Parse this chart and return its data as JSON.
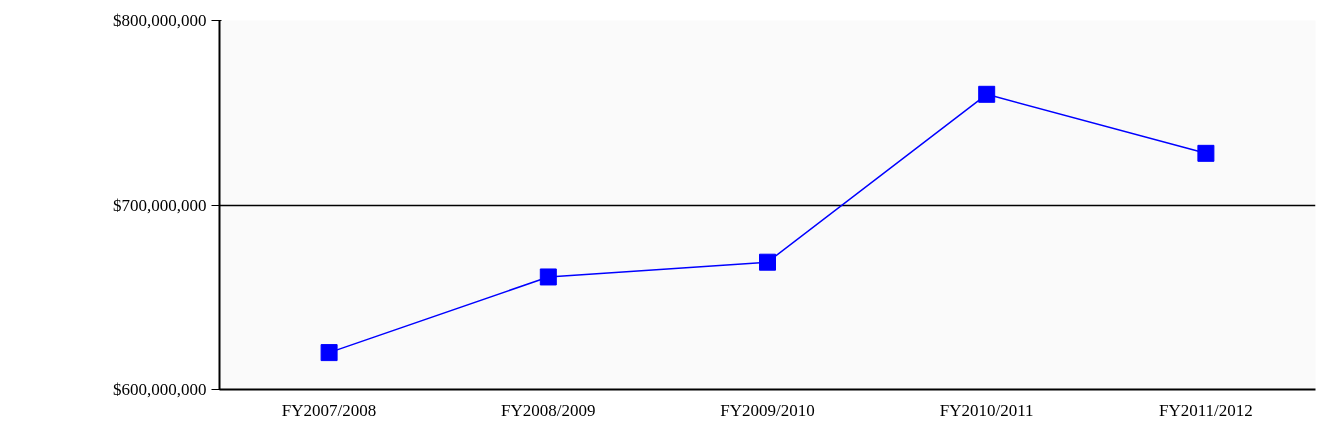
{
  "chart_data": {
    "type": "line",
    "categories": [
      "FY2007/2008",
      "FY2008/2009",
      "FY2009/2010",
      "FY2010/2011",
      "FY2011/2012"
    ],
    "series": [
      {
        "color": "#0000ff",
        "values": [
          620000000,
          661000000,
          669000000,
          760000000,
          728000000
        ]
      }
    ],
    "ylim": [
      600000000,
      800000000
    ],
    "yticks": [
      {
        "value": 600000000,
        "label": "$600,000,000"
      },
      {
        "value": 700000000,
        "label": "$700,000,000"
      },
      {
        "value": 800000000,
        "label": "$800,000,000"
      }
    ],
    "grid": "y",
    "marker": "square",
    "line_style": "solid"
  }
}
